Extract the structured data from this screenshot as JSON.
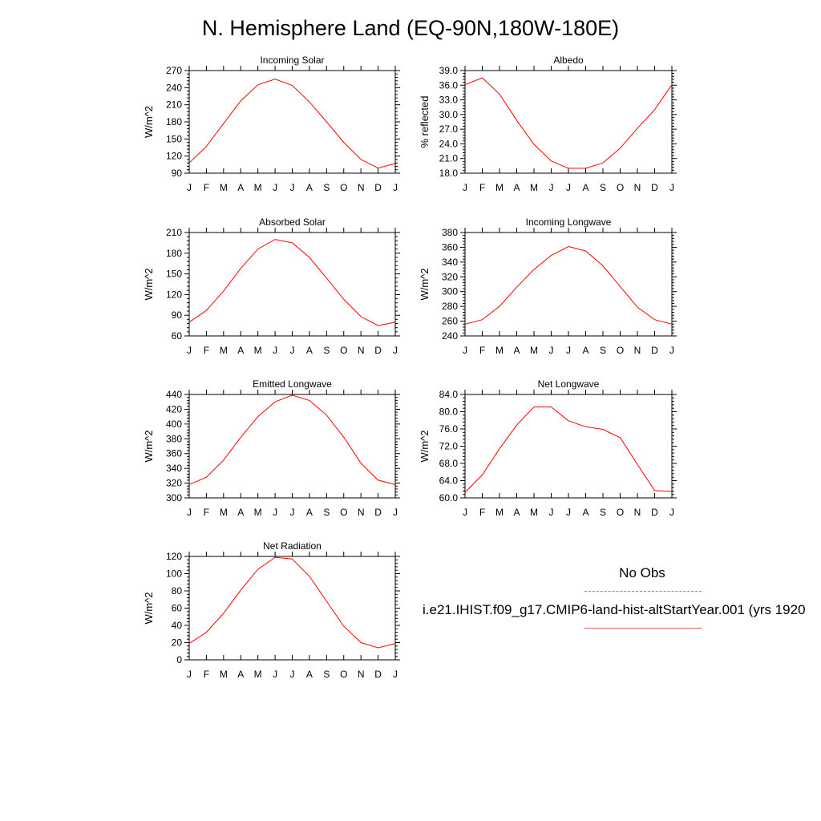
{
  "figure": {
    "title": "N. Hemisphere Land (EQ-90N,180W-180E)"
  },
  "legend": {
    "obs_label": "No Obs",
    "model_label": "i.e21.IHIST.f09_g17.CMIP6-land-hist-altStartYear.001 (yrs 1920",
    "obs_color": "#8080ff",
    "model_color": "#ff0000"
  },
  "chart_data": [
    {
      "type": "line",
      "title": "Incoming Solar",
      "xlabel": "",
      "ylabel": "W/m^2",
      "x": [
        "J",
        "F",
        "M",
        "A",
        "M",
        "J",
        "J",
        "A",
        "S",
        "O",
        "N",
        "D",
        "J"
      ],
      "ylim": [
        90,
        270
      ],
      "yticks": [
        "90",
        "120",
        "150",
        "180",
        "210",
        "240",
        "270"
      ],
      "series": [
        {
          "values": [
            108,
            137,
            177,
            217,
            245,
            255,
            244,
            215,
            180,
            144,
            114,
            99,
            107
          ],
          "color": "#ff0000"
        }
      ]
    },
    {
      "type": "line",
      "title": "Albedo",
      "xlabel": "",
      "ylabel": "% reflected",
      "x": [
        "J",
        "F",
        "M",
        "A",
        "M",
        "J",
        "J",
        "A",
        "S",
        "O",
        "N",
        "D",
        "J"
      ],
      "ylim": [
        18.0,
        39.0
      ],
      "yticks": [
        "18.0",
        "21.0",
        "24.0",
        "27.0",
        "30.0",
        "33.0",
        "36.0",
        "39.0"
      ],
      "series": [
        {
          "values": [
            36.1,
            37.5,
            34.2,
            28.8,
            23.9,
            20.5,
            19.0,
            19.0,
            20.1,
            23.1,
            27.2,
            31.0,
            36.1
          ],
          "color": "#ff0000"
        }
      ]
    },
    {
      "type": "line",
      "title": "Absorbed Solar",
      "xlabel": "",
      "ylabel": "W/m^2",
      "x": [
        "J",
        "F",
        "M",
        "A",
        "M",
        "J",
        "J",
        "A",
        "S",
        "O",
        "N",
        "D",
        "J"
      ],
      "ylim": [
        60,
        210
      ],
      "yticks": [
        "60",
        "90",
        "120",
        "150",
        "180",
        "210"
      ],
      "series": [
        {
          "values": [
            80,
            97,
            125,
            158,
            186,
            200,
            195,
            174,
            144,
            113,
            88,
            75,
            80
          ],
          "color": "#ff0000"
        }
      ]
    },
    {
      "type": "line",
      "title": "Incoming Longwave",
      "xlabel": "",
      "ylabel": "W/m^2",
      "x": [
        "J",
        "F",
        "M",
        "A",
        "M",
        "J",
        "J",
        "A",
        "S",
        "O",
        "N",
        "D",
        "J"
      ],
      "ylim": [
        240,
        380
      ],
      "yticks": [
        "240",
        "260",
        "280",
        "300",
        "320",
        "340",
        "360",
        "380"
      ],
      "series": [
        {
          "values": [
            256,
            262,
            280,
            306,
            330,
            349,
            361,
            355,
            335,
            307,
            279,
            262,
            256
          ],
          "color": "#ff0000"
        }
      ]
    },
    {
      "type": "line",
      "title": "Emitted Longwave",
      "xlabel": "",
      "ylabel": "W/m^2",
      "x": [
        "J",
        "F",
        "M",
        "A",
        "M",
        "J",
        "J",
        "A",
        "S",
        "O",
        "N",
        "D",
        "J"
      ],
      "ylim": [
        300,
        440
      ],
      "yticks": [
        "300",
        "320",
        "340",
        "360",
        "380",
        "400",
        "420",
        "440"
      ],
      "series": [
        {
          "values": [
            318,
            328,
            351,
            382,
            410,
            430,
            439,
            432,
            412,
            382,
            347,
            324,
            318
          ],
          "color": "#ff0000"
        }
      ]
    },
    {
      "type": "line",
      "title": "Net Longwave",
      "xlabel": "",
      "ylabel": "W/m^2",
      "x": [
        "J",
        "F",
        "M",
        "A",
        "M",
        "J",
        "J",
        "A",
        "S",
        "O",
        "N",
        "D",
        "J"
      ],
      "ylim": [
        60.0,
        84.0
      ],
      "yticks": [
        "60.0",
        "64.0",
        "68.0",
        "72.0",
        "76.0",
        "80.0",
        "84.0"
      ],
      "series": [
        {
          "values": [
            61.3,
            65.3,
            71.4,
            76.9,
            81.1,
            81.1,
            77.9,
            76.5,
            75.9,
            74.0,
            67.8,
            61.7,
            61.5
          ],
          "color": "#ff0000"
        }
      ]
    },
    {
      "type": "line",
      "title": "Net Radiation",
      "xlabel": "",
      "ylabel": "W/m^2",
      "x": [
        "J",
        "F",
        "M",
        "A",
        "M",
        "J",
        "J",
        "A",
        "S",
        "O",
        "N",
        "D",
        "J"
      ],
      "ylim": [
        0,
        120
      ],
      "yticks": [
        "0",
        "20",
        "40",
        "60",
        "80",
        "100",
        "120"
      ],
      "series": [
        {
          "values": [
            19,
            32,
            54,
            81,
            105,
            119,
            117,
            97,
            68,
            39,
            20,
            14,
            19
          ],
          "color": "#ff0000"
        }
      ]
    }
  ]
}
